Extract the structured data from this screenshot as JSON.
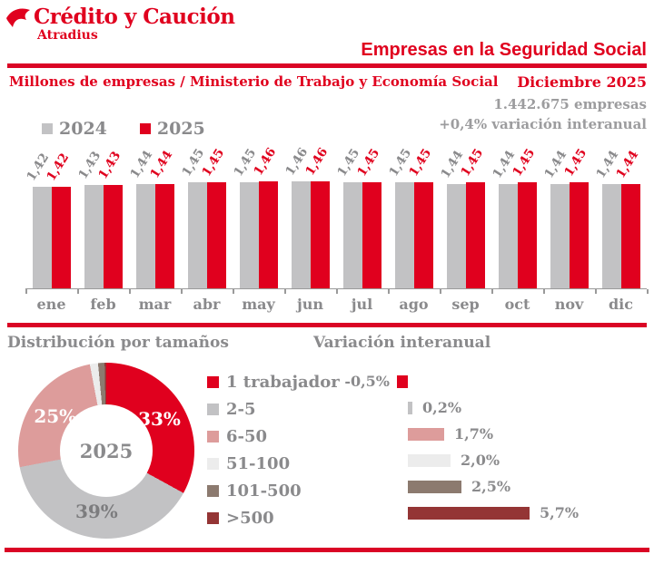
{
  "brand": {
    "name": "Crédito y Caución",
    "subname": "Atradius"
  },
  "header": {
    "title": "Empresas en la Seguridad Social",
    "subtitle_left": "Millones de empresas / Ministerio de Trabajo y Economía Social",
    "period": "Diciembre 2025",
    "stat_line1": "1.442.675 empresas",
    "stat_line2": "+0,4% variación interanual"
  },
  "colors": {
    "brand_red": "#e0001e",
    "rule_red": "#da0425",
    "gray_bar": "#c2c2c4",
    "text_gray": "#8a8a8c",
    "pink": "#dd9c9b",
    "light_gray": "#ececec",
    "brown": "#8c7a6f",
    "maroon": "#943535"
  },
  "sections": {
    "left_title": "Distribución por tamaños",
    "right_title": "Variación interanual"
  },
  "chart_data": [
    {
      "type": "bar",
      "title": "Empresas en la Seguridad Social (millones)",
      "categories": [
        "ene",
        "feb",
        "mar",
        "abr",
        "may",
        "jun",
        "jul",
        "ago",
        "sep",
        "oct",
        "nov",
        "dic"
      ],
      "series": [
        {
          "name": "2024",
          "color": "#c2c2c4",
          "values": [
            1.42,
            1.43,
            1.44,
            1.45,
            1.45,
            1.46,
            1.45,
            1.45,
            1.44,
            1.44,
            1.44,
            1.44
          ]
        },
        {
          "name": "2025",
          "color": "#e0001e",
          "values": [
            1.42,
            1.43,
            1.44,
            1.45,
            1.46,
            1.46,
            1.45,
            1.45,
            1.45,
            1.45,
            1.45,
            1.44
          ]
        }
      ],
      "ylabel": "Millones de empresas",
      "grid": false,
      "legend_position": "top-left",
      "value_labels_rotated": true
    },
    {
      "type": "pie",
      "title": "Distribución por tamaños",
      "center_label": "2025",
      "slices": [
        {
          "label": "1 trabajador",
          "value": 33,
          "display": "33%",
          "color": "#e0001e",
          "label_color": "#ffffff"
        },
        {
          "label": "2-5",
          "value": 39,
          "display": "39%",
          "color": "#c2c2c4",
          "label_color": "#7c7c7e"
        },
        {
          "label": "6-50",
          "value": 25,
          "display": "25%",
          "color": "#dd9c9b",
          "label_color": "#ffffff"
        },
        {
          "label": "51-100",
          "value": 1.5,
          "display": "",
          "color": "#ececec",
          "label_color": ""
        },
        {
          "label": "101-500",
          "value": 1.2,
          "display": "",
          "color": "#8c7a6f",
          "label_color": ""
        },
        {
          "label": ">500",
          "value": 0.3,
          "display": "",
          "color": "#943535",
          "label_color": ""
        }
      ],
      "clockwise_order": [
        "1 trabajador",
        "2-5",
        "6-50",
        "51-100",
        "101-500",
        ">500"
      ]
    },
    {
      "type": "bar",
      "orientation": "horizontal",
      "title": "Variación interanual",
      "categories": [
        "1 trabajador",
        "2-5",
        "6-50",
        "51-100",
        "101-500",
        ">500"
      ],
      "values": [
        -0.5,
        0.2,
        1.7,
        2.0,
        2.5,
        5.7
      ],
      "display_values": [
        "-0,5%",
        "0,2%",
        "1,7%",
        "2,0%",
        "2,5%",
        "5,7%"
      ],
      "colors": [
        "#e0001e",
        "#c2c2c4",
        "#dd9c9b",
        "#ececec",
        "#8c7a6f",
        "#943535"
      ],
      "unit": "%"
    }
  ]
}
